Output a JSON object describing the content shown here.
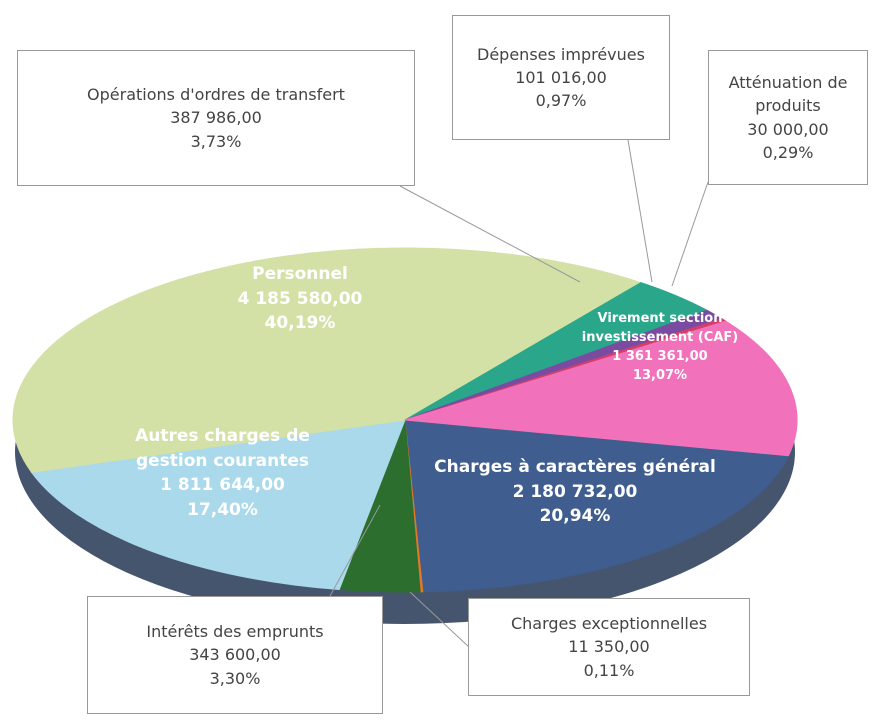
{
  "chart_data": {
    "type": "pie",
    "categories": [
      "Charges à caractères général",
      "Charges exceptionnelles",
      "Intérêts des emprunts",
      "Autres charges de gestion courantes",
      "Personnel",
      "Opérations d'ordres de transfert",
      "Dépenses imprévues",
      "Atténuation de produits",
      "Virement section investissement (CAF)"
    ],
    "values": [
      2180732,
      11350,
      343600,
      1811644,
      4185580,
      387986,
      101016,
      30000,
      1361361
    ],
    "value_labels": [
      "2 180 732,00",
      "11 350,00",
      "343 600,00",
      "1 811 644,00",
      "4 185 580,00",
      "387 986,00",
      "101 016,00",
      "30 000,00",
      "1 361 361,00"
    ],
    "percents": [
      20.94,
      0.11,
      3.3,
      17.4,
      40.19,
      3.73,
      0.97,
      0.29,
      13.07
    ],
    "percent_labels": [
      "20,94%",
      "0,11%",
      "3,30%",
      "17,40%",
      "40,19%",
      "3,73%",
      "0,97%",
      "0,29%",
      "13,07%"
    ],
    "colors": [
      "#3f5d8e",
      "#e0782a",
      "#2b6e2e",
      "#a9d9ea",
      "#d3e1a7",
      "#2aa78a",
      "#7b4ba2",
      "#d2406a",
      "#f172bb"
    ]
  }
}
